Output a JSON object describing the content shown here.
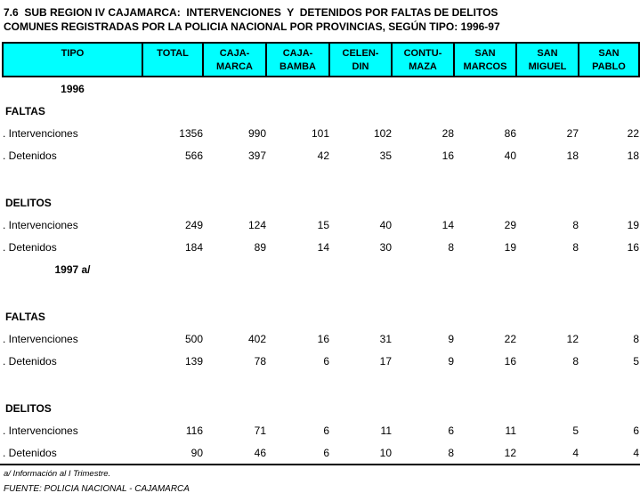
{
  "title": {
    "line1": "7.6  SUB REGION IV CAJAMARCA:  INTERVENCIONES  Y  DETENIDOS POR FALTAS DE DELITOS",
    "line2": "COMUNES REGISTRADAS POR LA POLICIA NACIONAL POR PROVINCIAS, SEGÚN TIPO: 1996-97"
  },
  "table": {
    "columns": [
      "TIPO",
      "TOTAL",
      "CAJA-\nMARCA",
      "CAJA-\nBAMBA",
      "CELEN-\nDIN",
      "CONTU-\nMAZA",
      "SAN\nMARCOS",
      "SAN\nMIGUEL",
      "SAN\nPABLO"
    ],
    "rows": [
      {
        "kind": "year",
        "label": "1996",
        "values": []
      },
      {
        "kind": "section",
        "label": "FALTAS",
        "values": []
      },
      {
        "kind": "data",
        "label": ". Intervenciones",
        "values": [
          1356,
          990,
          101,
          102,
          28,
          86,
          27,
          22
        ]
      },
      {
        "kind": "data",
        "label": ". Detenidos",
        "values": [
          566,
          397,
          42,
          35,
          16,
          40,
          18,
          18
        ]
      },
      {
        "kind": "blank",
        "label": "",
        "values": []
      },
      {
        "kind": "section",
        "label": "DELITOS",
        "values": []
      },
      {
        "kind": "data",
        "label": ". Intervenciones",
        "values": [
          249,
          124,
          15,
          40,
          14,
          29,
          8,
          19
        ]
      },
      {
        "kind": "data",
        "label": ". Detenidos",
        "values": [
          184,
          89,
          14,
          30,
          8,
          19,
          8,
          16
        ]
      },
      {
        "kind": "year",
        "label": "1997 a/",
        "values": []
      },
      {
        "kind": "blank",
        "label": "",
        "values": []
      },
      {
        "kind": "section",
        "label": "FALTAS",
        "values": []
      },
      {
        "kind": "data",
        "label": ". Intervenciones",
        "values": [
          500,
          402,
          16,
          31,
          9,
          22,
          12,
          8
        ]
      },
      {
        "kind": "data",
        "label": ". Detenidos",
        "values": [
          139,
          78,
          6,
          17,
          9,
          16,
          8,
          5
        ]
      },
      {
        "kind": "blank",
        "label": "",
        "values": []
      },
      {
        "kind": "section",
        "label": "DELITOS",
        "values": []
      },
      {
        "kind": "data",
        "label": ". Intervenciones",
        "values": [
          116,
          71,
          6,
          11,
          6,
          11,
          5,
          6
        ]
      },
      {
        "kind": "data",
        "label": ". Detenidos",
        "values": [
          90,
          46,
          6,
          10,
          8,
          12,
          4,
          4
        ]
      }
    ]
  },
  "footer": {
    "note": "a/ Información al  I  Trimestre.",
    "source": "FUENTE: POLICIA NACIONAL - CAJAMARCA"
  },
  "colors": {
    "header_bg": "#00FFFF",
    "border": "#000000",
    "text": "#000000",
    "page_bg": "#FFFFFF"
  }
}
